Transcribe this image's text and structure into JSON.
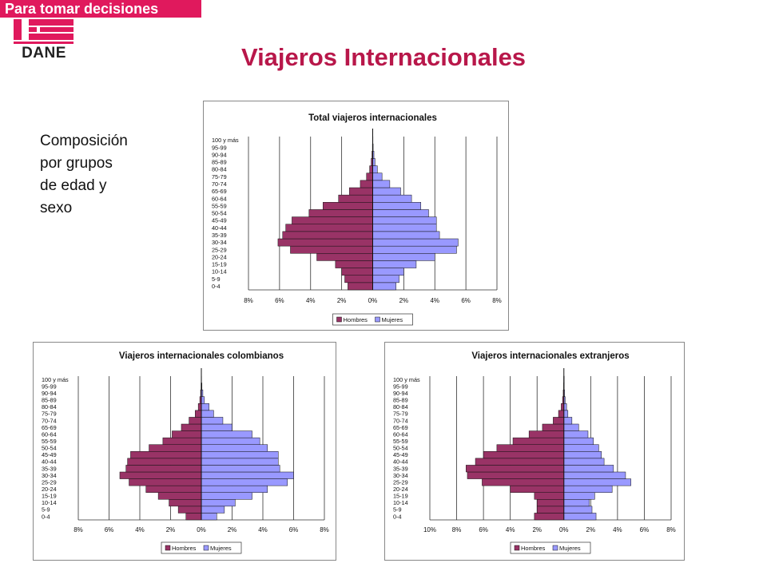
{
  "header": {
    "banner_text": "Para tomar decisiones",
    "logo_text": "DANE",
    "banner_color": "#e0195d"
  },
  "page": {
    "title": "Viajeros Internacionales",
    "caption_lines": [
      "Composición",
      "por grupos",
      "de edad y",
      "sexo"
    ]
  },
  "colors": {
    "hombres": "#993366",
    "mujeres": "#9999ff",
    "title": "#b8174a"
  },
  "chart_data": [
    {
      "type": "bar",
      "orientation": "horizontal",
      "title": "Total viajeros internacionales",
      "categories": [
        "0-4",
        "5-9",
        "10-14",
        "15-19",
        "20-24",
        "25-29",
        "30-34",
        "35-39",
        "40-44",
        "45-49",
        "50-54",
        "55-59",
        "60-64",
        "65-69",
        "70-74",
        "75-79",
        "80-84",
        "85-89",
        "90-94",
        "95-99",
        "100 y más"
      ],
      "series": [
        {
          "name": "Hombres",
          "values": [
            1.6,
            1.8,
            2.0,
            2.4,
            3.6,
            5.3,
            6.1,
            5.8,
            5.6,
            5.2,
            4.1,
            3.2,
            2.2,
            1.5,
            0.8,
            0.4,
            0.2,
            0.1,
            0.05,
            0.02,
            0.01
          ]
        },
        {
          "name": "Mujeres",
          "values": [
            1.5,
            1.7,
            2.0,
            2.8,
            4.0,
            5.4,
            5.5,
            4.3,
            4.1,
            4.1,
            3.6,
            3.1,
            2.5,
            1.8,
            1.1,
            0.6,
            0.3,
            0.15,
            0.08,
            0.03,
            0.01
          ]
        }
      ],
      "tick_labels": [
        "8%",
        "6%",
        "4%",
        "2%",
        "0%",
        "2%",
        "4%",
        "6%",
        "8%"
      ],
      "xlim": [
        -8,
        8
      ],
      "legend": [
        "Hombres",
        "Mujeres"
      ],
      "legend_position": "bottom"
    },
    {
      "type": "bar",
      "orientation": "horizontal",
      "title": "Viajeros internacionales colombianos",
      "categories": [
        "0-4",
        "5-9",
        "10-14",
        "15-19",
        "20-24",
        "25-29",
        "30-34",
        "35-39",
        "40-44",
        "45-49",
        "50-54",
        "55-59",
        "60-64",
        "65-69",
        "70-74",
        "75-79",
        "80-84",
        "85-89",
        "90-94",
        "95-99",
        "100 y más"
      ],
      "series": [
        {
          "name": "Hombres",
          "values": [
            1.0,
            1.5,
            2.1,
            2.8,
            3.6,
            4.7,
            5.3,
            4.9,
            4.8,
            4.6,
            3.4,
            2.5,
            1.9,
            1.3,
            0.8,
            0.4,
            0.2,
            0.1,
            0.05,
            0.02,
            0.01
          ]
        },
        {
          "name": "Mujeres",
          "values": [
            1.0,
            1.5,
            2.2,
            3.3,
            4.3,
            5.6,
            6.0,
            5.1,
            5.0,
            5.0,
            4.3,
            3.8,
            3.3,
            2.0,
            1.4,
            0.8,
            0.5,
            0.2,
            0.1,
            0.04,
            0.01
          ]
        }
      ],
      "tick_labels": [
        "8%",
        "6%",
        "4%",
        "2%",
        "0%",
        "2%",
        "4%",
        "6%",
        "8%"
      ],
      "xlim": [
        -8,
        8
      ],
      "legend": [
        "Hombres",
        "Mujeres"
      ],
      "legend_position": "bottom"
    },
    {
      "type": "bar",
      "orientation": "horizontal",
      "title": "Viajeros internacionales extranjeros",
      "categories": [
        "0-4",
        "5-9",
        "10-14",
        "15-19",
        "20-24",
        "25-29",
        "30-34",
        "35-39",
        "40-44",
        "45-49",
        "50-54",
        "55-59",
        "60-64",
        "65-69",
        "70-74",
        "75-79",
        "80-84",
        "85-89",
        "90-94",
        "95-99",
        "100 y más"
      ],
      "series": [
        {
          "name": "Hombres",
          "values": [
            2.2,
            2.0,
            2.0,
            2.2,
            4.0,
            6.1,
            7.2,
            7.3,
            6.6,
            6.0,
            5.0,
            3.8,
            2.6,
            1.6,
            0.8,
            0.4,
            0.2,
            0.1,
            0.05,
            0.02,
            0.01
          ]
        },
        {
          "name": "Mujeres",
          "values": [
            2.4,
            2.1,
            1.9,
            2.3,
            3.6,
            5.0,
            4.6,
            3.7,
            3.0,
            2.8,
            2.6,
            2.2,
            1.8,
            1.1,
            0.6,
            0.3,
            0.2,
            0.1,
            0.05,
            0.02,
            0.01
          ]
        }
      ],
      "tick_labels": [
        "10%",
        "8%",
        "6%",
        "4%",
        "2%",
        "0%",
        "2%",
        "4%",
        "6%",
        "8%"
      ],
      "xlim": [
        -10,
        8
      ],
      "legend": [
        "Hombres",
        "Mujeres"
      ],
      "legend_position": "bottom"
    }
  ]
}
